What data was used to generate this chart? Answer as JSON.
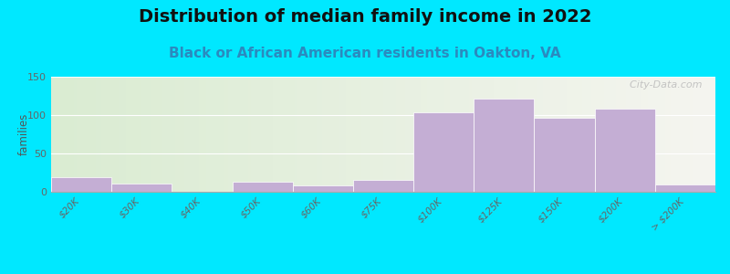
{
  "title": "Distribution of median family income in 2022",
  "subtitle": "Black or African American residents in Oakton, VA",
  "ylabel": "families",
  "categories": [
    "$20K",
    "$30K",
    "$40K",
    "$50K",
    "$60K",
    "$75K",
    "$100K",
    "$125K",
    "$150K",
    "$200K",
    "> $200K"
  ],
  "values": [
    19,
    11,
    0,
    13,
    8,
    15,
    103,
    121,
    97,
    108,
    9
  ],
  "bar_color": "#c4aed4",
  "bar_edge_color": "#c8b8d8",
  "background_outer": "#00e8ff",
  "background_inner_left": "#daecd2",
  "background_inner_right": "#f5f5f0",
  "ylim": [
    0,
    150
  ],
  "yticks": [
    0,
    50,
    100,
    150
  ],
  "title_fontsize": 14,
  "subtitle_fontsize": 11,
  "watermark_text": "  City-Data.com",
  "watermark_color": "#bbbbbb"
}
